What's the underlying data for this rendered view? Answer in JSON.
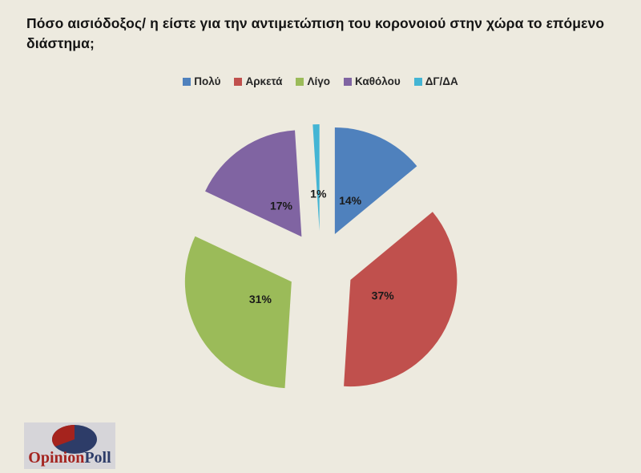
{
  "title": "Πόσο αισιόδοξος/ η είστε για την αντιμετώπιση του κορονοιού στην χώρα το επόμενο διάστημα;",
  "chart_data": {
    "type": "pie",
    "title": "Πόσο αισιόδοξος/ η είστε για την αντιμετώπιση του κορονοιού στην χώρα το επόμενο διάστημα;",
    "categories": [
      "Πολύ",
      "Αρκετά",
      "Λίγο",
      "Καθόλου",
      "ΔΓ/ΔΑ"
    ],
    "values": [
      14,
      37,
      31,
      17,
      1
    ],
    "value_labels": [
      "14%",
      "37%",
      "31%",
      "17%",
      "1%"
    ],
    "colors": [
      "#4f81bd",
      "#c0504d",
      "#9bbb59",
      "#8064a2",
      "#44b5d4"
    ],
    "legend_position": "top",
    "exploded": true,
    "start_angle_deg": 0,
    "direction": "clockwise",
    "label_color": "#1a1a1a",
    "background": "#edeadf"
  },
  "logo": {
    "text_primary": "Opinion",
    "text_secondary": "Poll",
    "color_primary": "#a42420",
    "color_secondary": "#2d3c68",
    "pie_main_color": "#2d3c68",
    "pie_wedge_color": "#a5231d",
    "box_color": "#d6d5d9"
  }
}
